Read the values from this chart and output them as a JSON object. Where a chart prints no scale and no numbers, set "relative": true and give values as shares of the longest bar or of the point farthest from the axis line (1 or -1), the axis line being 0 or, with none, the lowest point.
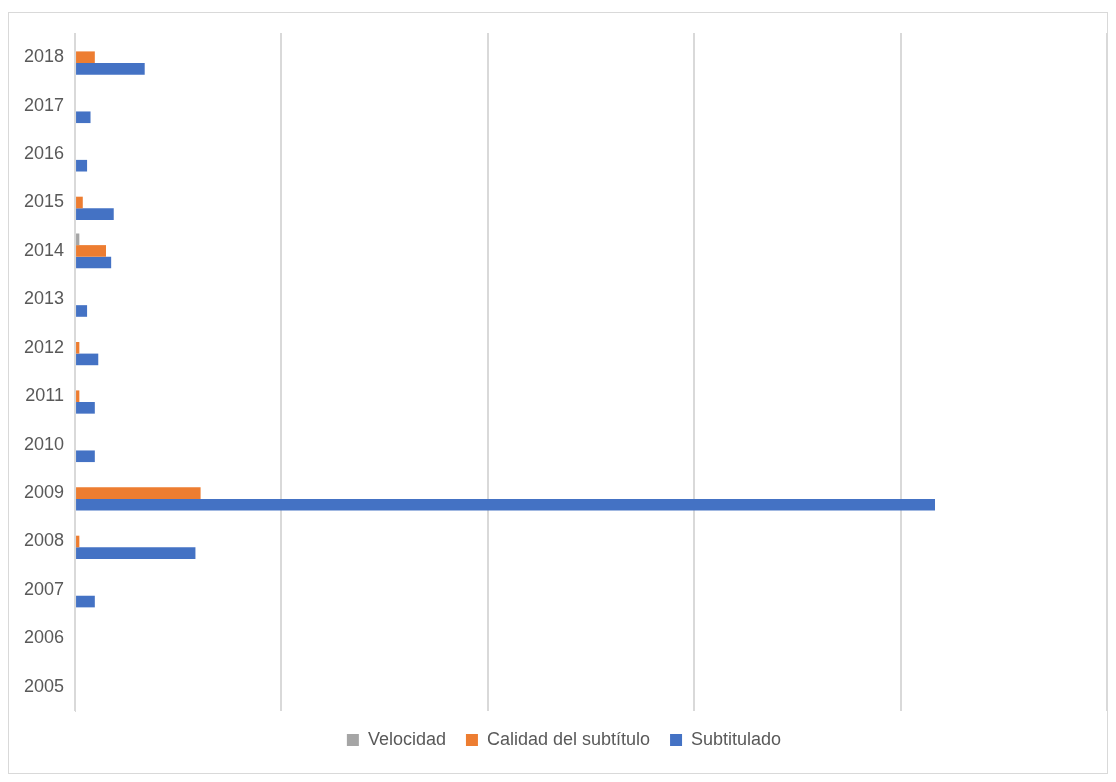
{
  "chart_data": {
    "type": "bar",
    "orientation": "horizontal",
    "relative": true,
    "grid": "x",
    "legend": "bottom",
    "categories": [
      "2018",
      "2017",
      "2016",
      "2015",
      "2014",
      "2013",
      "2012",
      "2011",
      "2010",
      "2009",
      "2008",
      "2007",
      "2006",
      "2005"
    ],
    "series": [
      {
        "name": "Velocidad",
        "color": "#a5a5a5",
        "values": [
          0,
          0,
          0,
          0,
          0.005,
          0,
          0,
          0,
          0,
          0,
          0,
          0,
          0,
          0
        ]
      },
      {
        "name": "Calidad del subtítulo",
        "color": "#ed7d31",
        "values": [
          0.023,
          0,
          0,
          0.009,
          0.036,
          0,
          0.005,
          0.005,
          0,
          0.146,
          0.005,
          0,
          0,
          0
        ]
      },
      {
        "name": "Subtitulado",
        "color": "#4472c4",
        "values": [
          0.081,
          0.018,
          0.014,
          0.045,
          0.042,
          0.014,
          0.027,
          0.023,
          0.023,
          1,
          0.14,
          0.023,
          0,
          0
        ]
      }
    ]
  }
}
